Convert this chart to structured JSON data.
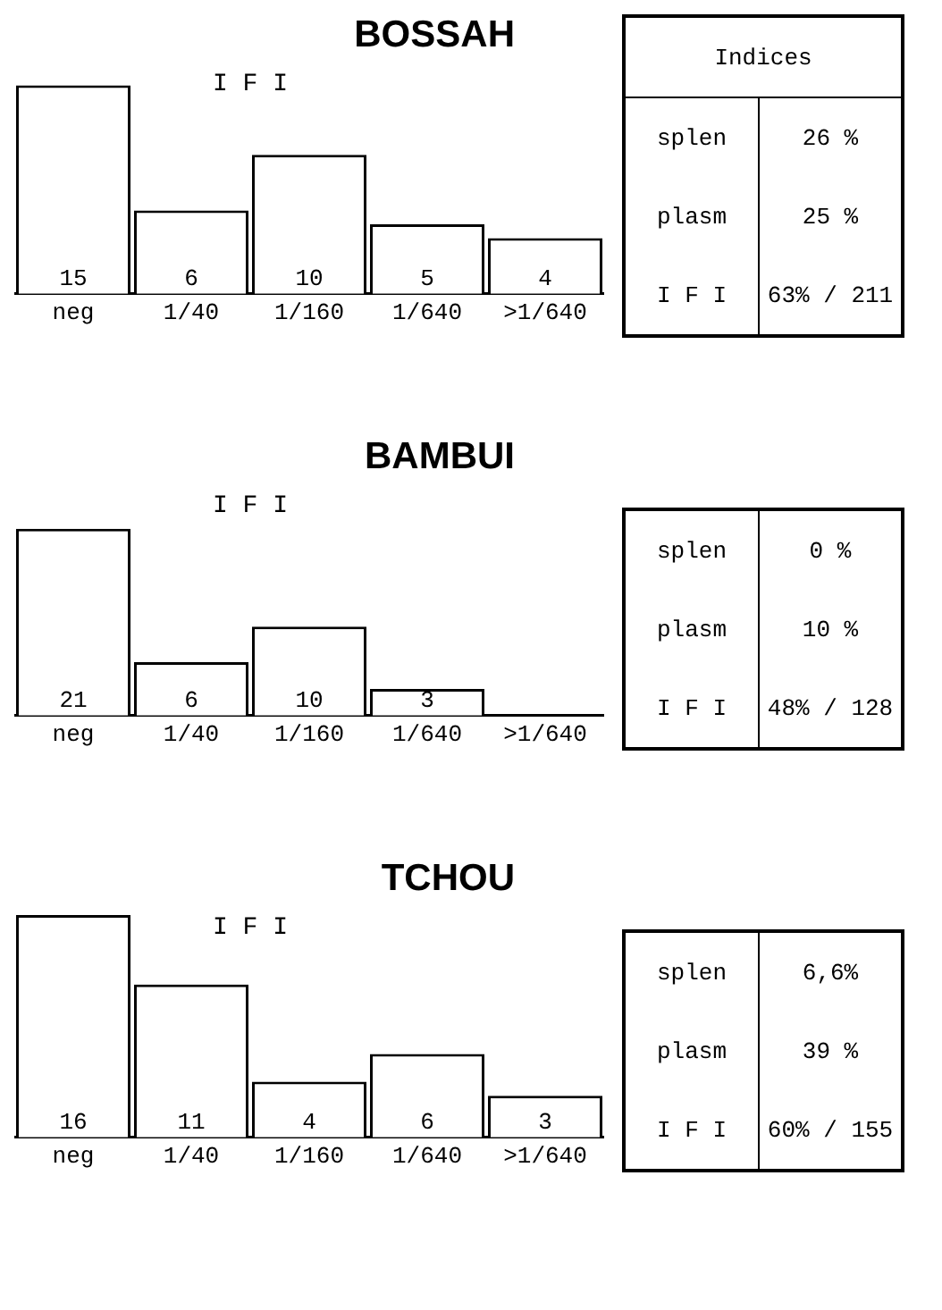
{
  "chart_data": [
    {
      "type": "bar",
      "title": "BOSSAH",
      "annotations": [
        "I F I"
      ],
      "categories": [
        "neg",
        "1/40",
        "1/160",
        "1/640",
        ">1/640"
      ],
      "values": [
        15,
        6,
        10,
        5,
        4
      ],
      "value_labels": [
        "15",
        "6",
        "10",
        "5",
        "4"
      ],
      "color": "#ffffff",
      "grid": false,
      "legend": false
    },
    {
      "type": "other",
      "title": "Indices",
      "annotations": [
        "splen",
        "26 %",
        "plasm",
        "25 %",
        "I F I",
        "63% / 211"
      ]
    },
    {
      "type": "bar",
      "title": "BAMBUI",
      "annotations": [
        "I F I"
      ],
      "categories": [
        "neg",
        "1/40",
        "1/160",
        "1/640",
        ">1/640"
      ],
      "values": [
        21,
        6,
        10,
        3,
        0
      ],
      "value_labels": [
        "21",
        "6",
        "10",
        "3",
        null
      ],
      "color": "#ffffff",
      "grid": false,
      "legend": false
    },
    {
      "type": "other",
      "annotations": [
        "splen",
        "0 %",
        "plasm",
        "10 %",
        "I F I",
        "48% / 128"
      ]
    },
    {
      "type": "bar",
      "title": "TCHOU",
      "annotations": [
        "I F I"
      ],
      "categories": [
        "neg",
        "1/40",
        "1/160",
        "1/640",
        ">1/640"
      ],
      "values": [
        16,
        11,
        4,
        6,
        3
      ],
      "value_labels": [
        "16",
        "11",
        "4",
        "6",
        "3"
      ],
      "color": "#ffffff",
      "grid": false,
      "legend": false
    },
    {
      "type": "other",
      "annotations": [
        "splen",
        "6,6%",
        "plasm",
        "39 %",
        "I F I",
        "60% / 155"
      ]
    }
  ]
}
